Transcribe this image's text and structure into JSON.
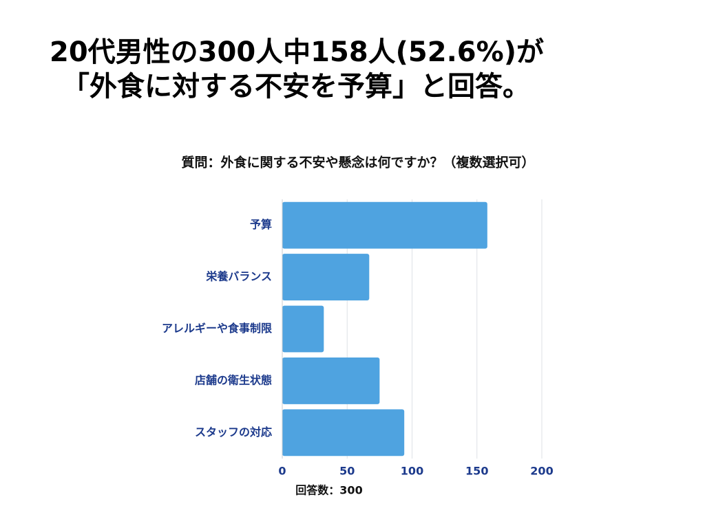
{
  "chart_data": {
    "type": "bar",
    "orientation": "horizontal",
    "title": [
      "20代男性の300人中158人(52.6%)が",
      "「外食に対する不安を予算」と回答。"
    ],
    "subtitle": "質問：外食に関する不安や懸念は何ですか？（複数選択可）",
    "x_label": "回答数：300",
    "categories": [
      "予算",
      "栄養バランス",
      "アレルギーや食事制限",
      "店舗の衛生状態",
      "スタッフの対応"
    ],
    "values": [
      158,
      67,
      32,
      75,
      94
    ],
    "color": "#4fa3e0",
    "xlim": [
      0,
      200
    ],
    "xticks": [
      0,
      50,
      100,
      150,
      200
    ],
    "grid": true
  }
}
